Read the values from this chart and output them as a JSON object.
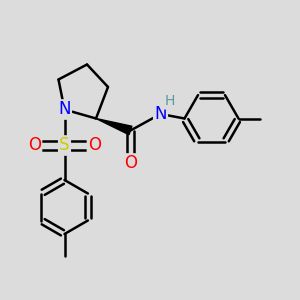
{
  "background_color": "#dcdcdc",
  "bond_color": "#000000",
  "bond_width": 1.8,
  "atom_colors": {
    "N": "#0000ff",
    "O": "#ff0000",
    "S": "#cccc00",
    "C": "#000000",
    "H": "#5a9a9a"
  },
  "font_size_atoms": 11,
  "xlim": [
    0,
    10
  ],
  "ylim": [
    0,
    10
  ]
}
